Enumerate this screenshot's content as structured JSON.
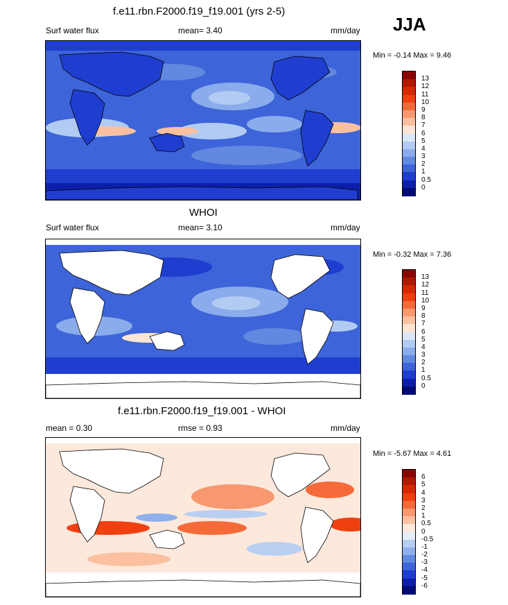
{
  "season": "JJA",
  "panels": [
    {
      "id": "model",
      "title": "f.e11.rbn.F2000.f19_f19.001 (yrs 2-5)",
      "left_label": "Surf water flux",
      "stat1": "mean=   3.40",
      "units": "mm/day",
      "minmax": "Min =  -0.14  Max =   9.46",
      "colorbar_labels": [
        "13",
        "12",
        "11",
        "10",
        "9",
        "8",
        "7",
        "6",
        "5",
        "4",
        "3",
        "2",
        "1",
        "0.5",
        "0"
      ],
      "colorbar_colors": [
        "#8b0000",
        "#b01800",
        "#d42a00",
        "#f04010",
        "#f66a3a",
        "#f89870",
        "#fac0a0",
        "#fde4d4",
        "#dbe6f8",
        "#b2cbf2",
        "#8aacec",
        "#6288e0",
        "#3d64d8",
        "#1f3ed0",
        "#0d1faa",
        "#000b78"
      ]
    },
    {
      "id": "obs",
      "title": "WHOI",
      "left_label": "Surf water flux",
      "stat1": "mean=   3.10",
      "units": "mm/day",
      "minmax": "Min =  -0.32  Max =   7.36",
      "colorbar_labels": [
        "13",
        "12",
        "11",
        "10",
        "9",
        "8",
        "7",
        "6",
        "5",
        "4",
        "3",
        "2",
        "1",
        "0.5",
        "0"
      ],
      "colorbar_colors": [
        "#8b0000",
        "#b01800",
        "#d42a00",
        "#f04010",
        "#f66a3a",
        "#f89870",
        "#fac0a0",
        "#fde4d4",
        "#dbe6f8",
        "#b2cbf2",
        "#8aacec",
        "#6288e0",
        "#3d64d8",
        "#1f3ed0",
        "#0d1faa",
        "#000b78"
      ]
    },
    {
      "id": "diff",
      "title": "f.e11.rbn.F2000.f19_f19.001 - WHOI",
      "left_label": "mean =   0.30",
      "stat1": "rmse =   0.93",
      "units": "mm/day",
      "minmax": "Min =  -5.67  Max =   4.61",
      "colorbar_labels": [
        "6",
        "5",
        "4",
        "3",
        "2",
        "1",
        "0.5",
        "0",
        "-0.5",
        "-1",
        "-2",
        "-3",
        "-4",
        "-5",
        "-6"
      ],
      "colorbar_colors": [
        "#8b0000",
        "#b01800",
        "#d42a00",
        "#f04010",
        "#f66a3a",
        "#f89870",
        "#fac0a0",
        "#fde8dc",
        "#e6eefa",
        "#b8cff2",
        "#8eb0ec",
        "#628ae0",
        "#3d64d8",
        "#1f3ed0",
        "#0d1faa",
        "#000b78"
      ]
    }
  ]
}
